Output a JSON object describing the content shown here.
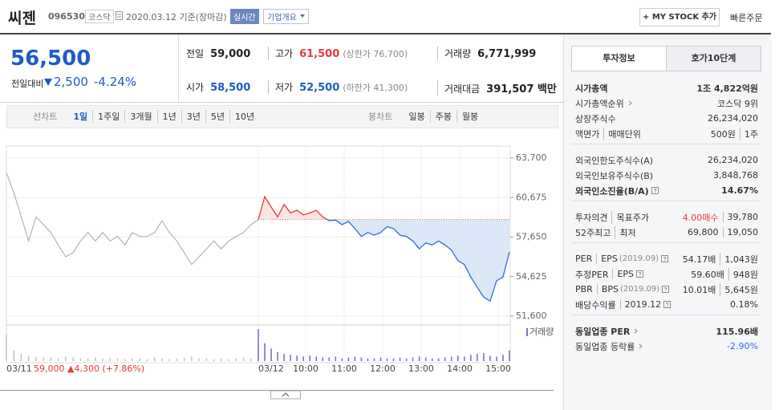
{
  "header": {
    "name": "씨젠",
    "code": "096530",
    "market": "코스닥",
    "date": "2020.03.12 기준(장마감)",
    "realtime": "실시간",
    "overview": "기업개요",
    "mystock": "+ MY STOCK 추가",
    "quick_order": "빠른주문"
  },
  "price": {
    "current": "56,500",
    "change_label": "전일대비",
    "change": "2,500",
    "change_rate": "-4.24%",
    "color": "#1f5bc6"
  },
  "quote_table": {
    "rows": [
      [
        {
          "label": "전일",
          "value": "59,000"
        },
        {
          "label": "고가",
          "value": "61,500",
          "note": "(상한가 76,700)",
          "color": "#e8393e"
        },
        {
          "label": "거래량",
          "value": "6,771,999"
        }
      ],
      [
        {
          "label": "시가",
          "value": "58,500",
          "color": "#1f5bc6"
        },
        {
          "label": "저가",
          "value": "52,500",
          "note": "(하한가 41,300)",
          "color": "#1f5bc6"
        },
        {
          "label": "거래대금",
          "value": "391,507 백만"
        }
      ]
    ]
  },
  "chart_tabs": {
    "line_label": "선차트",
    "line": [
      "1일",
      "1주일",
      "3개월",
      "1년",
      "3년",
      "5년",
      "10년"
    ],
    "selected": 0,
    "candle_label": "봉차트",
    "candle": [
      "일봉",
      "주봉",
      "월봉"
    ]
  },
  "chart": {
    "type": "line",
    "ylim": [
      51600,
      63700
    ],
    "yticks": [
      {
        "value": 63700,
        "label": "63,700"
      },
      {
        "value": 60675,
        "label": "60,675"
      },
      {
        "value": 57650,
        "label": "57,650"
      },
      {
        "value": 54625,
        "label": "54,625"
      },
      {
        "value": 51600,
        "label": "51,600"
      }
    ],
    "x_labels": [
      "03/11",
      "03/12",
      "10:00",
      "11:00",
      "12:00",
      "13:00",
      "14:00",
      "15:00"
    ],
    "prev_close": 59000,
    "volume_label": "거래량",
    "info": "59,000 ▲4,300 (+7.86%)",
    "info_color": "#e8393e",
    "series": [
      {
        "color": "#b4b4b4",
        "volume_color": "#c4c4c4",
        "values": [
          62600,
          61050,
          59200,
          57350,
          59200,
          58600,
          58000,
          57050,
          56150,
          56450,
          57350,
          58000,
          57350,
          58000,
          57350,
          57700,
          57050,
          58000,
          57700,
          57700,
          58000,
          58900,
          58000,
          57350,
          56450,
          55550,
          56150,
          56750,
          57350,
          56750,
          57350,
          57700,
          58000,
          58600,
          59000
        ],
        "volume": [
          30,
          12,
          8,
          6,
          5,
          4,
          4,
          3,
          5,
          4,
          3,
          3,
          4,
          3,
          3,
          3,
          2,
          3,
          3,
          2,
          4,
          3,
          2,
          3,
          4,
          5,
          3,
          3,
          2,
          3,
          2,
          3,
          4,
          3,
          5
        ]
      },
      {
        "up_color": "#e8393e",
        "down_color": "#2d6fd0",
        "up_fill": "#fbe4e5",
        "down_fill": "#dce7f7",
        "volume_color": "#7b72c9",
        "values": [
          59000,
          60750,
          59950,
          59200,
          60150,
          59500,
          59700,
          59350,
          59500,
          59700,
          59200,
          58900,
          58950,
          58600,
          58850,
          58300,
          57700,
          58000,
          57800,
          58000,
          58450,
          58300,
          57800,
          57700,
          57350,
          56750,
          57200,
          57050,
          57350,
          57050,
          56650,
          55850,
          55550,
          54600,
          53800,
          53050,
          52750,
          54300,
          54600,
          56500
        ],
        "volume": [
          36,
          20,
          14,
          10,
          8,
          7,
          6,
          5,
          6,
          5,
          4,
          4,
          5,
          3,
          4,
          5,
          4,
          3,
          3,
          4,
          3,
          3,
          4,
          3,
          4,
          5,
          4,
          3,
          3,
          4,
          5,
          6,
          5,
          7,
          8,
          9,
          6,
          5,
          7,
          12
        ]
      }
    ]
  },
  "invest": {
    "tabs": [
      "투자정보",
      "호가10단계"
    ],
    "groups": [
      [
        {
          "label": [
            "시가총액"
          ],
          "value": [
            "1조 4,822억원"
          ],
          "bold": true
        },
        {
          "label": [
            "시가총액순위"
          ],
          "link": true,
          "value": [
            "코스닥 9위"
          ]
        },
        {
          "label": [
            "상장주식수"
          ],
          "value": [
            "26,234,020"
          ]
        },
        {
          "label": [
            "액면가",
            "매매단위"
          ],
          "value": [
            "500원",
            "1주"
          ]
        }
      ],
      [
        {
          "label": [
            "외국인한도주식수(A)"
          ],
          "value": [
            "26,234,020"
          ]
        },
        {
          "label": [
            "외국인보유주식수(B)"
          ],
          "value": [
            "3,848,768"
          ]
        },
        {
          "label": [
            "외국인소진율(B/A)"
          ],
          "help": true,
          "value": [
            "14.67%"
          ],
          "bold": true
        }
      ],
      [
        {
          "label": [
            "투자의견",
            "목표주가"
          ],
          "value": [
            "4.00매수",
            "39,780"
          ],
          "first_color": "#e8393e"
        },
        {
          "label": [
            "52주최고",
            "최저"
          ],
          "value": [
            "69,800",
            "19,050"
          ]
        }
      ],
      [
        {
          "label": [
            "PER",
            "EPS"
          ],
          "note": "(2019.09)",
          "help": true,
          "value": [
            "54.17배",
            "1,043원"
          ]
        },
        {
          "label": [
            "추정PER",
            "EPS"
          ],
          "help": true,
          "value": [
            "59.60배",
            "948원"
          ]
        },
        {
          "label": [
            "PBR",
            "BPS"
          ],
          "note": "(2019.09)",
          "help": true,
          "value": [
            "10.01배",
            "5,645원"
          ]
        },
        {
          "label": [
            "배당수익률",
            "2019.12"
          ],
          "help": true,
          "value": [
            "0.18%"
          ]
        }
      ],
      [
        {
          "label": [
            "동일업종 PER"
          ],
          "link": true,
          "value": [
            "115.96배"
          ],
          "bold": true
        },
        {
          "label": [
            "동일업종 등락률"
          ],
          "link": true,
          "value": [
            "-2.90%"
          ],
          "first_color": "#2d6fd0"
        }
      ]
    ]
  }
}
